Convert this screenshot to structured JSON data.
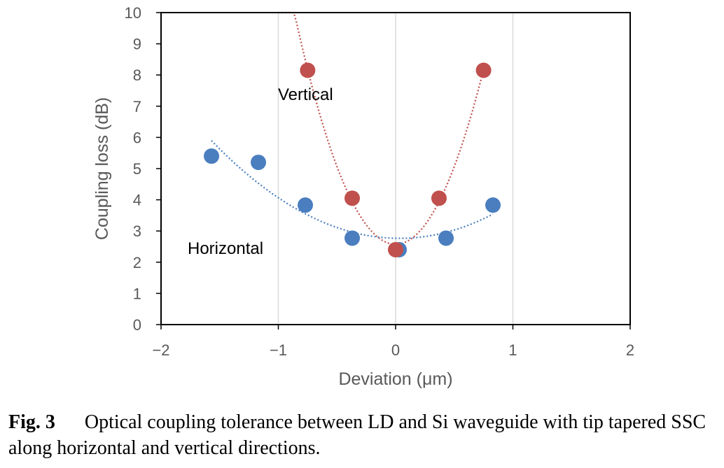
{
  "chart_data": {
    "type": "scatter",
    "xlabel": "Deviation (μm)",
    "ylabel": "Coupling loss (dB)",
    "xlim": [
      -2,
      2
    ],
    "ylim": [
      0,
      10
    ],
    "xticks": [
      "−2",
      "−1",
      "0",
      "1",
      "2"
    ],
    "yticks": [
      "0",
      "1",
      "2",
      "3",
      "4",
      "5",
      "6",
      "7",
      "8",
      "9",
      "10"
    ],
    "grid": "vertical",
    "series": [
      {
        "name": "Horizontal",
        "color": "#4a7ebf",
        "x": [
          -1.57,
          -1.17,
          -0.77,
          -0.37,
          0.03,
          0.43,
          0.83
        ],
        "y": [
          5.4,
          5.2,
          3.83,
          2.77,
          2.4,
          2.77,
          3.83
        ],
        "trendline": "polynomial-2",
        "fit_x_range": [
          -1.57,
          0.83
        ]
      },
      {
        "name": "Vertical",
        "color": "#c0504d",
        "x": [
          -0.75,
          -0.37,
          0.0,
          0.37,
          0.75
        ],
        "y": [
          8.15,
          4.05,
          2.4,
          4.05,
          8.15
        ],
        "trendline": "polynomial-2",
        "fit_x_range": [
          -1.0,
          0.75
        ]
      }
    ]
  },
  "caption": {
    "label": "Fig. 3",
    "text": "Optical coupling tolerance between LD and Si waveguide with tip tapered SSC along horizontal and vertical directions."
  }
}
